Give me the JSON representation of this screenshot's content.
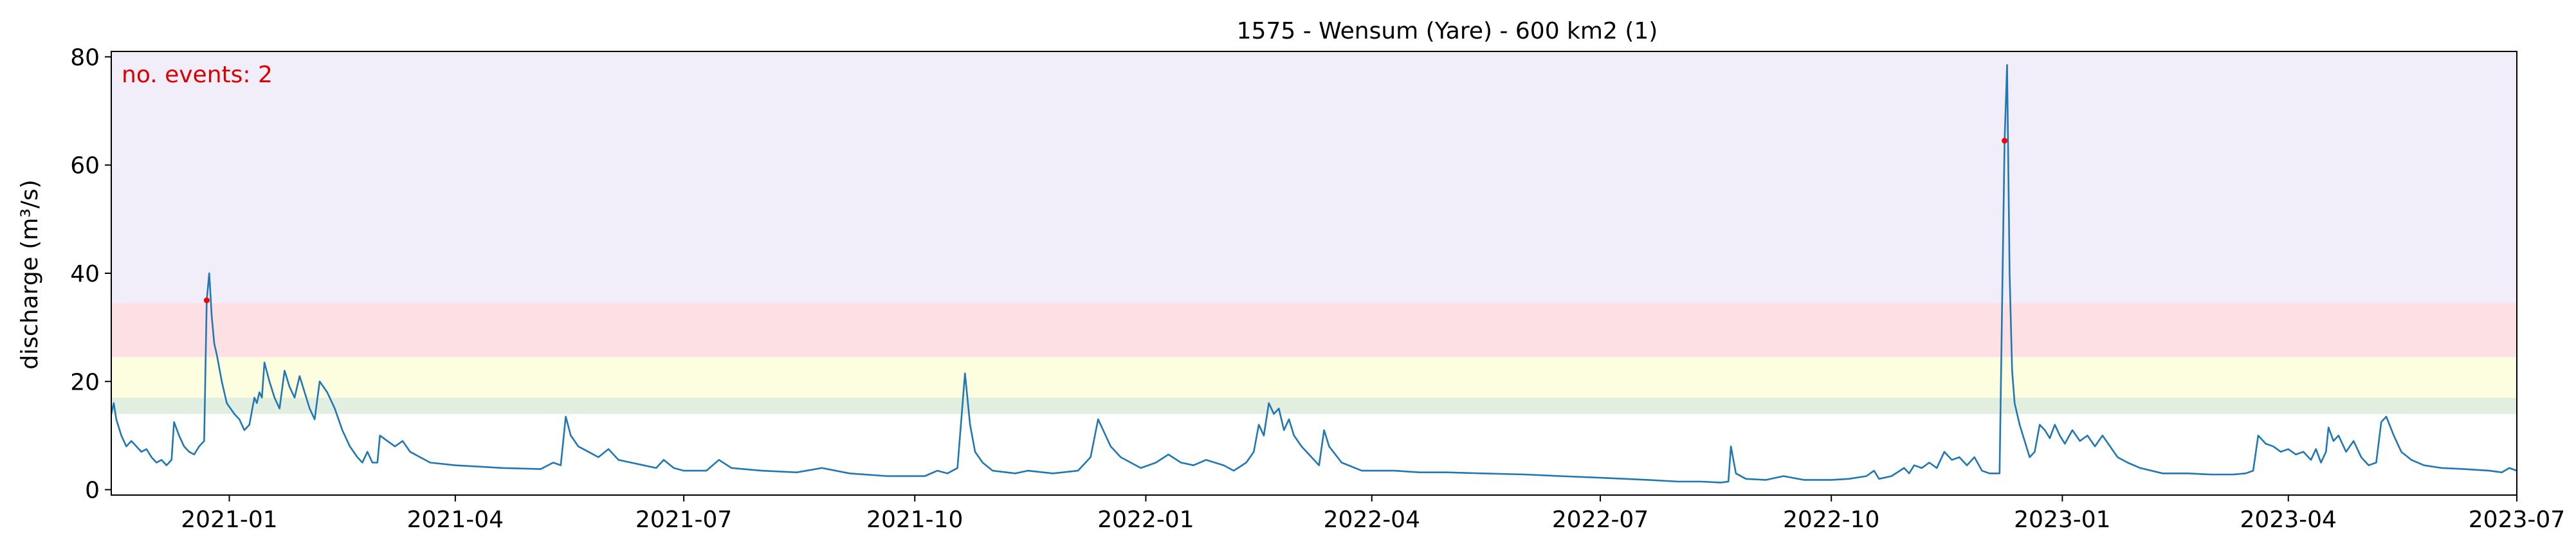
{
  "chart_data": {
    "type": "line",
    "title": "1575 - Wensum (Yare) - 600 km2 (1)",
    "xlabel": "",
    "ylabel": "discharge (m³/s)",
    "xlim": [
      "2020-11-15",
      "2023-07-01"
    ],
    "ylim": [
      -1,
      81
    ],
    "x_tick_labels": [
      "2021-01",
      "2021-04",
      "2021-07",
      "2021-10",
      "2022-01",
      "2022-04",
      "2022-07",
      "2022-10",
      "2023-01",
      "2023-04",
      "2023-07"
    ],
    "y_ticks": [
      0,
      20,
      40,
      60,
      80
    ],
    "grid": false,
    "legend": "none",
    "threshold_bands": [
      {
        "from": 14,
        "to": 17,
        "color": "#e2eedf"
      },
      {
        "from": 17,
        "to": 24.5,
        "color": "#fdfde0"
      },
      {
        "from": 24.5,
        "to": 34.5,
        "color": "#fde0e3"
      },
      {
        "from": 34.5,
        "to": 81,
        "color": "#f1eefa"
      }
    ],
    "line_color": "#1f77b4",
    "event_color": "#ff0000",
    "annotation": {
      "text": "no. events: 2",
      "color": "#dd0000",
      "placement": "top-left"
    },
    "events": [
      {
        "x": "2020-12-23",
        "y": 35
      },
      {
        "x": "2022-12-09",
        "y": 64.5
      }
    ],
    "series": [
      {
        "points": [
          [
            "2020-11-15",
            14
          ],
          [
            "2020-11-16",
            16
          ],
          [
            "2020-11-17",
            13
          ],
          [
            "2020-11-19",
            10
          ],
          [
            "2020-11-21",
            8
          ],
          [
            "2020-11-23",
            9
          ],
          [
            "2020-11-25",
            8
          ],
          [
            "2020-11-27",
            7
          ],
          [
            "2020-11-29",
            7.5
          ],
          [
            "2020-12-01",
            6
          ],
          [
            "2020-12-03",
            5
          ],
          [
            "2020-12-05",
            5.5
          ],
          [
            "2020-12-07",
            4.5
          ],
          [
            "2020-12-09",
            5.5
          ],
          [
            "2020-12-10",
            12.5
          ],
          [
            "2020-12-12",
            10
          ],
          [
            "2020-12-14",
            8
          ],
          [
            "2020-12-16",
            7
          ],
          [
            "2020-12-18",
            6.5
          ],
          [
            "2020-12-20",
            8
          ],
          [
            "2020-12-22",
            9
          ],
          [
            "2020-12-23",
            35
          ],
          [
            "2020-12-24",
            40
          ],
          [
            "2020-12-25",
            32
          ],
          [
            "2020-12-26",
            27
          ],
          [
            "2020-12-27",
            25
          ],
          [
            "2020-12-29",
            20
          ],
          [
            "2020-12-31",
            16
          ],
          [
            "2021-01-03",
            14
          ],
          [
            "2021-01-05",
            13
          ],
          [
            "2021-01-07",
            11
          ],
          [
            "2021-01-09",
            12
          ],
          [
            "2021-01-11",
            17
          ],
          [
            "2021-01-12",
            16
          ],
          [
            "2021-01-13",
            18
          ],
          [
            "2021-01-14",
            17
          ],
          [
            "2021-01-15",
            23.5
          ],
          [
            "2021-01-17",
            20
          ],
          [
            "2021-01-19",
            17
          ],
          [
            "2021-01-21",
            15
          ],
          [
            "2021-01-23",
            22
          ],
          [
            "2021-01-25",
            19
          ],
          [
            "2021-01-27",
            17
          ],
          [
            "2021-01-29",
            21
          ],
          [
            "2021-01-31",
            18
          ],
          [
            "2021-02-02",
            15
          ],
          [
            "2021-02-04",
            13
          ],
          [
            "2021-02-06",
            20
          ],
          [
            "2021-02-09",
            18
          ],
          [
            "2021-02-12",
            15
          ],
          [
            "2021-02-15",
            11
          ],
          [
            "2021-02-18",
            8
          ],
          [
            "2021-02-21",
            6
          ],
          [
            "2021-02-23",
            5
          ],
          [
            "2021-02-25",
            7
          ],
          [
            "2021-02-27",
            5
          ],
          [
            "2021-03-01",
            5
          ],
          [
            "2021-03-02",
            10
          ],
          [
            "2021-03-05",
            9
          ],
          [
            "2021-03-08",
            8
          ],
          [
            "2021-03-11",
            9
          ],
          [
            "2021-03-14",
            7
          ],
          [
            "2021-03-18",
            6
          ],
          [
            "2021-03-22",
            5
          ],
          [
            "2021-04-01",
            4.5
          ],
          [
            "2021-04-20",
            4
          ],
          [
            "2021-05-05",
            3.8
          ],
          [
            "2021-05-10",
            5
          ],
          [
            "2021-05-13",
            4.5
          ],
          [
            "2021-05-15",
            13.5
          ],
          [
            "2021-05-17",
            10
          ],
          [
            "2021-05-20",
            8
          ],
          [
            "2021-05-24",
            7
          ],
          [
            "2021-05-28",
            6
          ],
          [
            "2021-06-01",
            7.5
          ],
          [
            "2021-06-05",
            5.5
          ],
          [
            "2021-06-10",
            5
          ],
          [
            "2021-06-15",
            4.5
          ],
          [
            "2021-06-20",
            4
          ],
          [
            "2021-06-23",
            5.5
          ],
          [
            "2021-06-27",
            4
          ],
          [
            "2021-07-01",
            3.5
          ],
          [
            "2021-07-10",
            3.5
          ],
          [
            "2021-07-15",
            5.5
          ],
          [
            "2021-07-20",
            4
          ],
          [
            "2021-08-01",
            3.5
          ],
          [
            "2021-08-15",
            3.2
          ],
          [
            "2021-08-25",
            4
          ],
          [
            "2021-09-05",
            3
          ],
          [
            "2021-09-20",
            2.5
          ],
          [
            "2021-10-05",
            2.5
          ],
          [
            "2021-10-10",
            3.5
          ],
          [
            "2021-10-14",
            3
          ],
          [
            "2021-10-18",
            4
          ],
          [
            "2021-10-21",
            21.5
          ],
          [
            "2021-10-23",
            12
          ],
          [
            "2021-10-25",
            7
          ],
          [
            "2021-10-28",
            5
          ],
          [
            "2021-11-01",
            3.5
          ],
          [
            "2021-11-10",
            3
          ],
          [
            "2021-11-15",
            3.5
          ],
          [
            "2021-11-25",
            3
          ],
          [
            "2021-12-05",
            3.5
          ],
          [
            "2021-12-10",
            6
          ],
          [
            "2021-12-13",
            13
          ],
          [
            "2021-12-15",
            11
          ],
          [
            "2021-12-18",
            8
          ],
          [
            "2021-12-22",
            6
          ],
          [
            "2021-12-26",
            5
          ],
          [
            "2021-12-30",
            4
          ],
          [
            "2022-01-05",
            5
          ],
          [
            "2022-01-10",
            6.5
          ],
          [
            "2022-01-15",
            5
          ],
          [
            "2022-01-20",
            4.5
          ],
          [
            "2022-01-25",
            5.5
          ],
          [
            "2022-02-01",
            4.5
          ],
          [
            "2022-02-05",
            3.5
          ],
          [
            "2022-02-10",
            5
          ],
          [
            "2022-02-13",
            7
          ],
          [
            "2022-02-15",
            12
          ],
          [
            "2022-02-17",
            10
          ],
          [
            "2022-02-19",
            16
          ],
          [
            "2022-02-21",
            14
          ],
          [
            "2022-02-23",
            15
          ],
          [
            "2022-02-25",
            11
          ],
          [
            "2022-02-27",
            13
          ],
          [
            "2022-03-01",
            10
          ],
          [
            "2022-03-04",
            8
          ],
          [
            "2022-03-08",
            6
          ],
          [
            "2022-03-11",
            4.5
          ],
          [
            "2022-03-13",
            11
          ],
          [
            "2022-03-15",
            8
          ],
          [
            "2022-03-20",
            5
          ],
          [
            "2022-03-28",
            3.5
          ],
          [
            "2022-04-10",
            3.5
          ],
          [
            "2022-04-20",
            3.2
          ],
          [
            "2022-05-01",
            3.2
          ],
          [
            "2022-05-15",
            3
          ],
          [
            "2022-06-01",
            2.8
          ],
          [
            "2022-06-15",
            2.5
          ],
          [
            "2022-07-01",
            2.2
          ],
          [
            "2022-07-20",
            1.8
          ],
          [
            "2022-08-01",
            1.5
          ],
          [
            "2022-08-10",
            1.5
          ],
          [
            "2022-08-18",
            1.3
          ],
          [
            "2022-08-21",
            1.5
          ],
          [
            "2022-08-22",
            8
          ],
          [
            "2022-08-24",
            3
          ],
          [
            "2022-08-28",
            2
          ],
          [
            "2022-09-05",
            1.8
          ],
          [
            "2022-09-12",
            2.5
          ],
          [
            "2022-09-20",
            1.8
          ],
          [
            "2022-10-01",
            1.8
          ],
          [
            "2022-10-08",
            2
          ],
          [
            "2022-10-15",
            2.5
          ],
          [
            "2022-10-18",
            3.5
          ],
          [
            "2022-10-20",
            2
          ],
          [
            "2022-10-25",
            2.5
          ],
          [
            "2022-10-30",
            4
          ],
          [
            "2022-11-01",
            3
          ],
          [
            "2022-11-03",
            4.5
          ],
          [
            "2022-11-06",
            4
          ],
          [
            "2022-11-09",
            5
          ],
          [
            "2022-11-12",
            4
          ],
          [
            "2022-11-15",
            7
          ],
          [
            "2022-11-18",
            5.5
          ],
          [
            "2022-11-21",
            6
          ],
          [
            "2022-11-24",
            4.5
          ],
          [
            "2022-11-27",
            6
          ],
          [
            "2022-11-30",
            3.5
          ],
          [
            "2022-12-03",
            3
          ],
          [
            "2022-12-07",
            3
          ],
          [
            "2022-12-09",
            64.5
          ],
          [
            "2022-12-10",
            78.5
          ],
          [
            "2022-12-11",
            40
          ],
          [
            "2022-12-12",
            22
          ],
          [
            "2022-12-13",
            16
          ],
          [
            "2022-12-15",
            12
          ],
          [
            "2022-12-17",
            9
          ],
          [
            "2022-12-19",
            6
          ],
          [
            "2022-12-21",
            7
          ],
          [
            "2022-12-23",
            12
          ],
          [
            "2022-12-25",
            11
          ],
          [
            "2022-12-27",
            9.5
          ],
          [
            "2022-12-29",
            12
          ],
          [
            "2022-12-31",
            10
          ],
          [
            "2023-01-02",
            8.5
          ],
          [
            "2023-01-05",
            11
          ],
          [
            "2023-01-08",
            9
          ],
          [
            "2023-01-11",
            10
          ],
          [
            "2023-01-14",
            8
          ],
          [
            "2023-01-17",
            10
          ],
          [
            "2023-01-20",
            8
          ],
          [
            "2023-01-23",
            6
          ],
          [
            "2023-01-27",
            5
          ],
          [
            "2023-02-01",
            4
          ],
          [
            "2023-02-10",
            3
          ],
          [
            "2023-02-20",
            3
          ],
          [
            "2023-03-01",
            2.8
          ],
          [
            "2023-03-10",
            2.8
          ],
          [
            "2023-03-15",
            3
          ],
          [
            "2023-03-18",
            3.5
          ],
          [
            "2023-03-20",
            10
          ],
          [
            "2023-03-23",
            8.5
          ],
          [
            "2023-03-26",
            8
          ],
          [
            "2023-03-29",
            7
          ],
          [
            "2023-04-01",
            7.5
          ],
          [
            "2023-04-04",
            6.5
          ],
          [
            "2023-04-07",
            7
          ],
          [
            "2023-04-10",
            5.5
          ],
          [
            "2023-04-12",
            7.5
          ],
          [
            "2023-04-14",
            5
          ],
          [
            "2023-04-16",
            7
          ],
          [
            "2023-04-17",
            11.5
          ],
          [
            "2023-04-19",
            9
          ],
          [
            "2023-04-21",
            10
          ],
          [
            "2023-04-24",
            7
          ],
          [
            "2023-04-27",
            9
          ],
          [
            "2023-04-30",
            6
          ],
          [
            "2023-05-03",
            4.5
          ],
          [
            "2023-05-06",
            5
          ],
          [
            "2023-05-08",
            12.5
          ],
          [
            "2023-05-10",
            13.5
          ],
          [
            "2023-05-13",
            10
          ],
          [
            "2023-05-16",
            7
          ],
          [
            "2023-05-20",
            5.5
          ],
          [
            "2023-05-25",
            4.5
          ],
          [
            "2023-06-01",
            4
          ],
          [
            "2023-06-10",
            3.8
          ],
          [
            "2023-06-20",
            3.5
          ],
          [
            "2023-06-25",
            3.2
          ],
          [
            "2023-06-28",
            4
          ],
          [
            "2023-07-01",
            3.5
          ]
        ]
      }
    ]
  }
}
